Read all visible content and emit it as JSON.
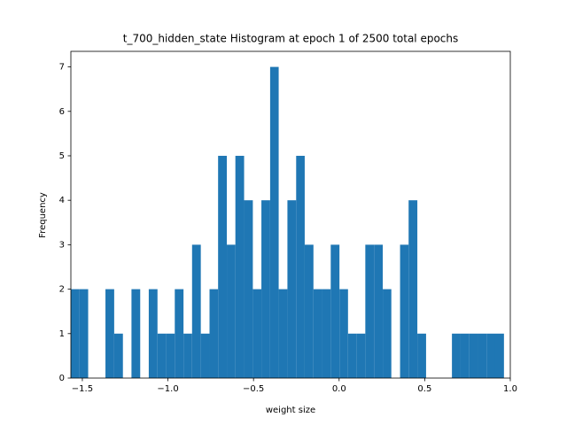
{
  "chart_data": {
    "type": "histogram",
    "title": "t_700_hidden_state Histogram at epoch 1 of 2500 total epochs",
    "x_label": "weight size",
    "y_label": "Frequency",
    "color": "#1f77b4",
    "bins": [
      -1.567,
      -1.516,
      -1.466,
      -1.415,
      -1.365,
      -1.314,
      -1.263,
      -1.213,
      -1.162,
      -1.112,
      -1.061,
      -1.01,
      -0.96,
      -0.909,
      -0.859,
      -0.808,
      -0.757,
      -0.707,
      -0.656,
      -0.606,
      -0.555,
      -0.504,
      -0.454,
      -0.403,
      -0.353,
      -0.302,
      -0.251,
      -0.201,
      -0.15,
      -0.1,
      -0.049,
      0.002,
      0.052,
      0.103,
      0.153,
      0.204,
      0.255,
      0.305,
      0.356,
      0.406,
      0.457,
      0.508,
      0.558,
      0.609,
      0.659,
      0.71,
      0.761,
      0.811,
      0.862,
      0.912,
      0.963
    ],
    "values": [
      2,
      2,
      0,
      0,
      2,
      1,
      0,
      2,
      0,
      2,
      1,
      1,
      2,
      1,
      3,
      1,
      2,
      5,
      3,
      5,
      4,
      2,
      4,
      7,
      2,
      4,
      5,
      3,
      2,
      2,
      3,
      2,
      1,
      1,
      3,
      3,
      2,
      0,
      3,
      4,
      1,
      0,
      0,
      0,
      1,
      1,
      1,
      1,
      1,
      1
    ],
    "xlim": [
      -1.567,
      1.0
    ],
    "ylim": [
      0,
      7.35
    ],
    "xticks": [
      {
        "value": -1.5,
        "label": "−1.5"
      },
      {
        "value": -1.0,
        "label": "−1.0"
      },
      {
        "value": -0.5,
        "label": "−0.5"
      },
      {
        "value": 0.0,
        "label": "0.0"
      },
      {
        "value": 0.5,
        "label": "0.5"
      },
      {
        "value": 1.0,
        "label": "1.0"
      }
    ],
    "yticks": [
      0,
      1,
      2,
      3,
      4,
      5,
      6,
      7
    ]
  }
}
